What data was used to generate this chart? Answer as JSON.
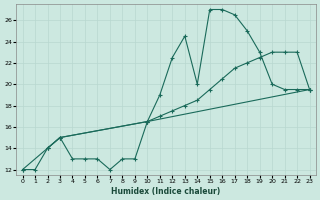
{
  "xlabel": "Humidex (Indice chaleur)",
  "bg_color": "#cce8e0",
  "grid_color": "#b8d8d0",
  "line_color": "#1a6a5a",
  "xlim": [
    -0.5,
    23.5
  ],
  "ylim": [
    11.5,
    27.5
  ],
  "yticks": [
    12,
    14,
    16,
    18,
    20,
    22,
    24,
    26
  ],
  "xticks": [
    0,
    1,
    2,
    3,
    4,
    5,
    6,
    7,
    8,
    9,
    10,
    11,
    12,
    13,
    14,
    15,
    16,
    17,
    18,
    19,
    20,
    21,
    22,
    23
  ],
  "curve1_x": [
    0,
    1,
    2,
    3,
    4,
    5,
    6,
    7,
    8,
    9,
    10,
    11,
    12,
    13,
    14,
    15,
    16,
    17,
    18,
    19,
    20,
    21,
    22,
    23
  ],
  "curve1_y": [
    12,
    12,
    14,
    15,
    13,
    13,
    13,
    12,
    13,
    13,
    16.5,
    19,
    22.5,
    24.5,
    20,
    27,
    27,
    26.5,
    25,
    23,
    20,
    19.5,
    19.5,
    19.5
  ],
  "curve2_x": [
    2,
    3,
    10,
    11,
    12,
    13,
    14,
    15,
    16,
    17,
    18,
    19,
    20,
    21,
    22,
    23
  ],
  "curve2_y": [
    14,
    15,
    16.5,
    17,
    17.5,
    18,
    18.5,
    19.5,
    20.5,
    21.5,
    22,
    22.5,
    23,
    23,
    23,
    19.5
  ],
  "curve3_x": [
    0,
    2,
    3,
    10,
    23
  ],
  "curve3_y": [
    12,
    14,
    15,
    16.5,
    19.5
  ]
}
